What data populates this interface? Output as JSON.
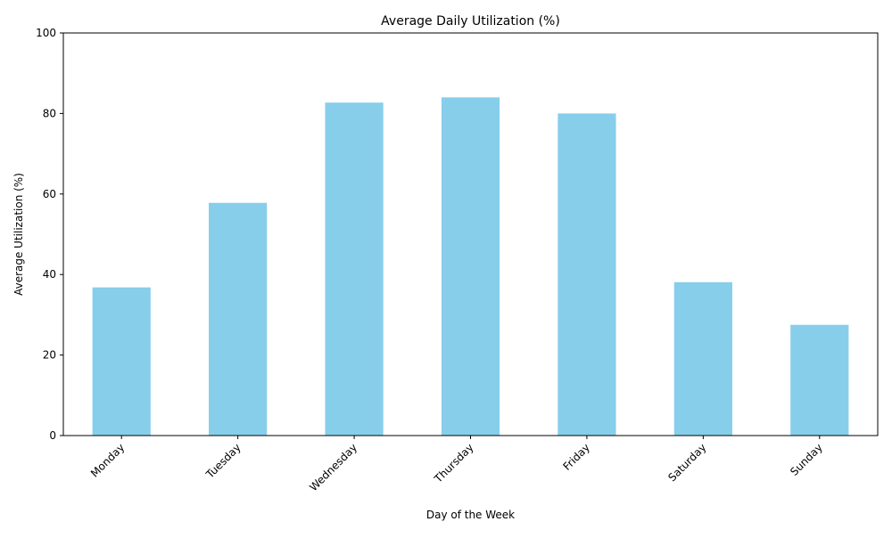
{
  "chart_data": {
    "type": "bar",
    "title": "Average Daily Utilization (%)",
    "xlabel": "Day of the Week",
    "ylabel": "Average Utilization (%)",
    "categories": [
      "Monday",
      "Tuesday",
      "Wednesday",
      "Thursday",
      "Friday",
      "Saturday",
      "Sunday"
    ],
    "values": [
      36.8,
      57.8,
      82.7,
      84.0,
      80.0,
      38.1,
      27.5
    ],
    "ylim": [
      0,
      100
    ],
    "yticks": [
      "0",
      "20",
      "40",
      "60",
      "80",
      "100"
    ],
    "bar_color": "#87CEEB",
    "grid": false,
    "legend": "none"
  }
}
